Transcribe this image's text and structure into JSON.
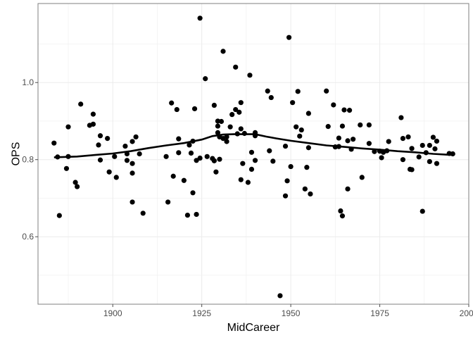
{
  "chart_data": {
    "type": "scatter",
    "title": "",
    "xlabel": "MidCareer",
    "ylabel": "OPS",
    "xlim": [
      1879,
      2000
    ],
    "ylim": [
      0.425,
      1.205
    ],
    "xticks": [
      1900,
      1925,
      1950,
      1975,
      2000
    ],
    "xtick_labels": [
      "1900",
      "1925",
      "1950",
      "1975",
      "2000"
    ],
    "yticks": [
      0.6,
      0.8,
      1.0
    ],
    "ytick_labels": [
      "0.6",
      "0.8",
      "1.0"
    ],
    "grid": true,
    "legend": "none",
    "colors": {
      "points": "#000000",
      "smooth": "#000000",
      "grid": "#ebebeb",
      "border": "#7f7f7f",
      "ticks": "#4d4d4d"
    },
    "points": [
      [
        1883.5,
        0.843
      ],
      [
        1884.5,
        0.807
      ],
      [
        1885,
        0.655
      ],
      [
        1887,
        0.777
      ],
      [
        1887.5,
        0.808
      ],
      [
        1887.5,
        0.885
      ],
      [
        1889.5,
        0.741
      ],
      [
        1890,
        0.73
      ],
      [
        1891,
        0.944
      ],
      [
        1893.5,
        0.889
      ],
      [
        1894.5,
        0.918
      ],
      [
        1894.5,
        0.892
      ],
      [
        1896,
        0.838
      ],
      [
        1896.5,
        0.862
      ],
      [
        1896.5,
        0.799
      ],
      [
        1898.5,
        0.855
      ],
      [
        1899,
        0.768
      ],
      [
        1900.5,
        0.808
      ],
      [
        1901,
        0.754
      ],
      [
        1903.5,
        0.835
      ],
      [
        1904,
        0.815
      ],
      [
        1904,
        0.798
      ],
      [
        1905.5,
        0.79
      ],
      [
        1905.5,
        0.847
      ],
      [
        1905.5,
        0.765
      ],
      [
        1905.5,
        0.69
      ],
      [
        1906.5,
        0.859
      ],
      [
        1907.5,
        0.815
      ],
      [
        1908.5,
        0.661
      ],
      [
        1915,
        0.808
      ],
      [
        1915.5,
        0.69
      ],
      [
        1916.5,
        0.947
      ],
      [
        1917,
        0.757
      ],
      [
        1918,
        0.93
      ],
      [
        1918.5,
        0.854
      ],
      [
        1918.5,
        0.818
      ],
      [
        1920,
        0.746
      ],
      [
        1921,
        0.656
      ],
      [
        1921.5,
        0.838
      ],
      [
        1922,
        0.817
      ],
      [
        1922.5,
        0.848
      ],
      [
        1922.5,
        0.714
      ],
      [
        1923,
        0.932
      ],
      [
        1923.5,
        0.798
      ],
      [
        1923.5,
        0.658
      ],
      [
        1924.5,
        1.167
      ],
      [
        1924.5,
        0.804
      ],
      [
        1926,
        1.01
      ],
      [
        1926.5,
        0.808
      ],
      [
        1928,
        0.803
      ],
      [
        1928.5,
        0.941
      ],
      [
        1928.5,
        0.797
      ],
      [
        1929,
        0.768
      ],
      [
        1929.5,
        0.9
      ],
      [
        1929.5,
        0.887
      ],
      [
        1929.5,
        0.87
      ],
      [
        1930,
        0.859
      ],
      [
        1930,
        0.801
      ],
      [
        1930.5,
        0.899
      ],
      [
        1931,
        1.081
      ],
      [
        1931,
        0.855
      ],
      [
        1932,
        0.859
      ],
      [
        1932,
        0.847
      ],
      [
        1933,
        0.885
      ],
      [
        1933.5,
        0.917
      ],
      [
        1934.5,
        1.04
      ],
      [
        1934.5,
        0.93
      ],
      [
        1935,
        0.867
      ],
      [
        1935.5,
        0.923
      ],
      [
        1936,
        0.948
      ],
      [
        1936,
        0.88
      ],
      [
        1936,
        0.748
      ],
      [
        1936.5,
        0.79
      ],
      [
        1937,
        0.868
      ],
      [
        1938,
        0.741
      ],
      [
        1938.5,
        1.019
      ],
      [
        1939,
        0.819
      ],
      [
        1939,
        0.775
      ],
      [
        1940,
        0.87
      ],
      [
        1940,
        0.862
      ],
      [
        1940,
        0.798
      ],
      [
        1943.5,
        0.978
      ],
      [
        1944,
        0.823
      ],
      [
        1944.5,
        0.961
      ],
      [
        1945,
        0.796
      ],
      [
        1947,
        0.447
      ],
      [
        1948.5,
        0.835
      ],
      [
        1948.5,
        0.706
      ],
      [
        1949,
        0.745
      ],
      [
        1949.5,
        1.117
      ],
      [
        1950,
        0.782
      ],
      [
        1950.5,
        0.948
      ],
      [
        1951.5,
        0.885
      ],
      [
        1952,
        0.977
      ],
      [
        1952.5,
        0.861
      ],
      [
        1953,
        0.877
      ],
      [
        1954,
        0.724
      ],
      [
        1954.5,
        0.78
      ],
      [
        1955,
        0.831
      ],
      [
        1955,
        0.92
      ],
      [
        1955.5,
        0.711
      ],
      [
        1960,
        0.978
      ],
      [
        1960.5,
        0.886
      ],
      [
        1962,
        0.942
      ],
      [
        1962.5,
        0.833
      ],
      [
        1963.5,
        0.856
      ],
      [
        1963.5,
        0.834
      ],
      [
        1964,
        0.667
      ],
      [
        1964.5,
        0.654
      ],
      [
        1964.5,
        0.887
      ],
      [
        1965,
        0.929
      ],
      [
        1966,
        0.849
      ],
      [
        1966,
        0.724
      ],
      [
        1966.5,
        0.928
      ],
      [
        1967,
        0.827
      ],
      [
        1967.5,
        0.853
      ],
      [
        1969.5,
        0.89
      ],
      [
        1970,
        0.754
      ],
      [
        1972,
        0.89
      ],
      [
        1972,
        0.842
      ],
      [
        1973.5,
        0.821
      ],
      [
        1975,
        0.822
      ],
      [
        1975.5,
        0.805
      ],
      [
        1976,
        0.819
      ],
      [
        1977,
        0.823
      ],
      [
        1977.5,
        0.847
      ],
      [
        1981,
        0.909
      ],
      [
        1981.5,
        0.8
      ],
      [
        1981.5,
        0.855
      ],
      [
        1983,
        0.859
      ],
      [
        1983.5,
        0.775
      ],
      [
        1984,
        0.774
      ],
      [
        1984,
        0.829
      ],
      [
        1986,
        0.807
      ],
      [
        1987,
        0.837
      ],
      [
        1987,
        0.666
      ],
      [
        1988,
        0.818
      ],
      [
        1989,
        0.837
      ],
      [
        1989,
        0.795
      ],
      [
        1990,
        0.858
      ],
      [
        1990.5,
        0.828
      ],
      [
        1991,
        0.79
      ],
      [
        1991,
        0.848
      ],
      [
        1994.5,
        0.816
      ],
      [
        1995.5,
        0.815
      ]
    ],
    "smooth": [
      [
        1883.5,
        0.806
      ],
      [
        1890,
        0.808
      ],
      [
        1895,
        0.812
      ],
      [
        1900,
        0.816
      ],
      [
        1905,
        0.822
      ],
      [
        1910,
        0.83
      ],
      [
        1915,
        0.837
      ],
      [
        1920,
        0.843
      ],
      [
        1925,
        0.852
      ],
      [
        1928,
        0.861
      ],
      [
        1931,
        0.865
      ],
      [
        1934,
        0.866
      ],
      [
        1937,
        0.866
      ],
      [
        1940,
        0.866
      ],
      [
        1943,
        0.86
      ],
      [
        1946,
        0.855
      ],
      [
        1950,
        0.849
      ],
      [
        1955,
        0.843
      ],
      [
        1960,
        0.837
      ],
      [
        1965,
        0.833
      ],
      [
        1970,
        0.829
      ],
      [
        1975,
        0.826
      ],
      [
        1980,
        0.822
      ],
      [
        1985,
        0.819
      ],
      [
        1990,
        0.815
      ],
      [
        1995.5,
        0.812
      ]
    ]
  }
}
